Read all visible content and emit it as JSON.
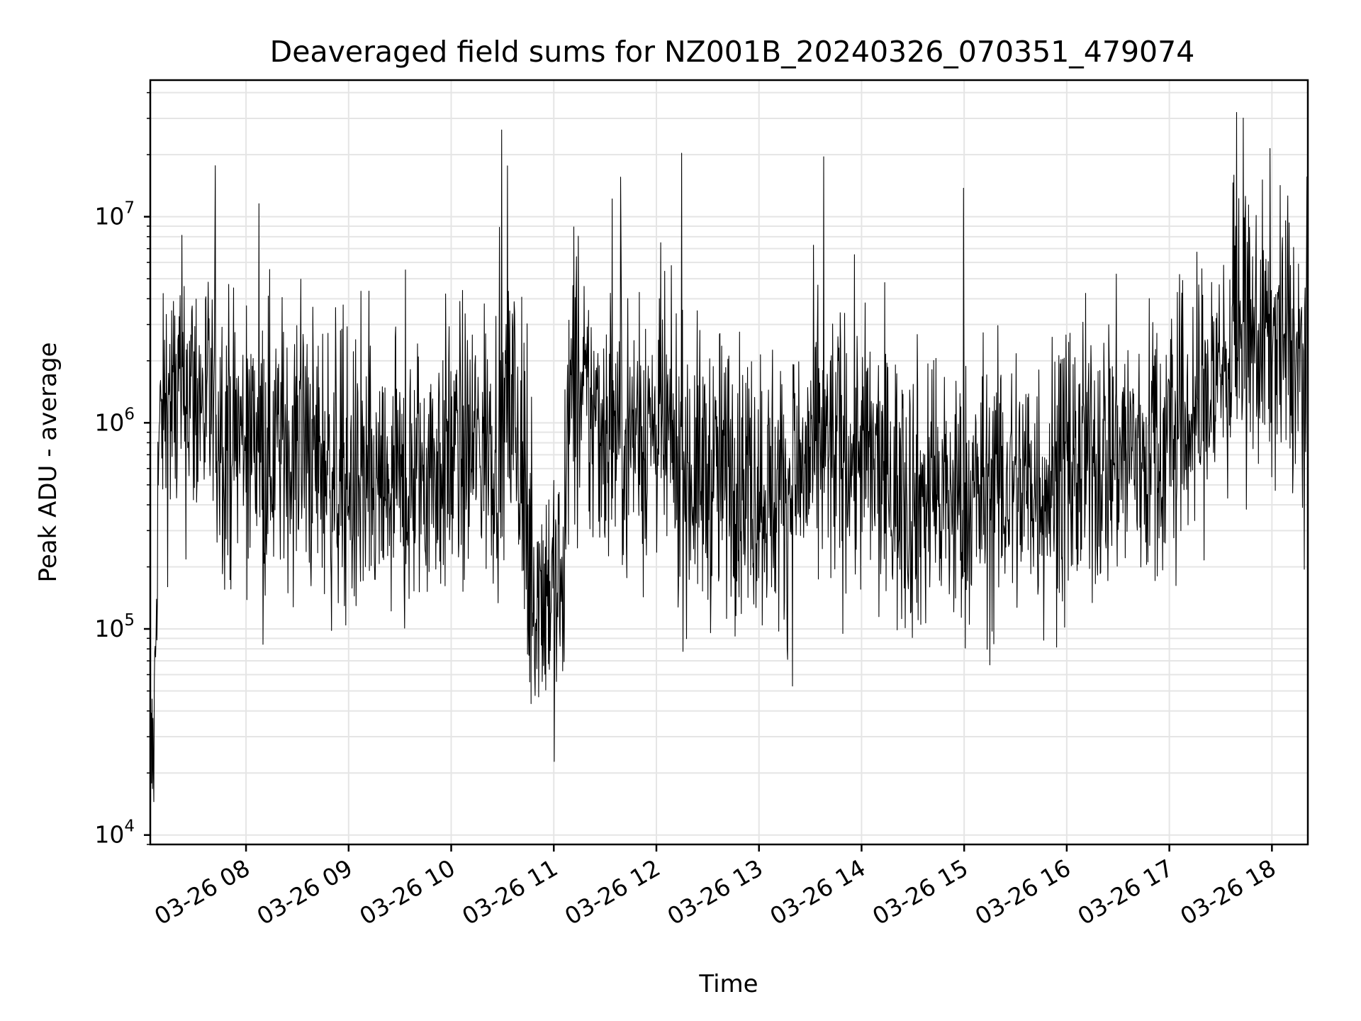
{
  "chart_data": {
    "type": "line",
    "title": "Deaveraged field sums for NZ001B_20240326_070351_479074",
    "xlabel": "Time",
    "ylabel": "Peak ADU - average",
    "x_start": "2024-03-26 07:04",
    "x_end": "2024-03-26 18:21",
    "xlim": [
      "2024-03-26 07:04",
      "2024-03-26 18:21"
    ],
    "yscale": "log",
    "ylim": [
      9000,
      46000000
    ],
    "grid": true,
    "line_color": "#000000",
    "x_ticks": [
      "2024-03-26 08:00",
      "2024-03-26 09:00",
      "2024-03-26 10:00",
      "2024-03-26 11:00",
      "2024-03-26 12:00",
      "2024-03-26 13:00",
      "2024-03-26 14:00",
      "2024-03-26 15:00",
      "2024-03-26 16:00",
      "2024-03-26 17:00",
      "2024-03-26 18:00"
    ],
    "x_tick_labels": [
      "03-26 08",
      "03-26 09",
      "03-26 10",
      "03-26 11",
      "03-26 12",
      "03-26 13",
      "03-26 14",
      "03-26 15",
      "03-26 16",
      "03-26 17",
      "03-26 18"
    ],
    "y_ticks": [
      10000,
      100000,
      1000000,
      10000000
    ],
    "y_tick_labels": [
      {
        "base": "10",
        "exp": "4"
      },
      {
        "base": "10",
        "exp": "5"
      },
      {
        "base": "10",
        "exp": "6"
      },
      {
        "base": "10",
        "exp": "7"
      }
    ],
    "series": [
      {
        "x": [
          "2024-03-26 07:04",
          "2024-03-26 07:06",
          "2024-03-26 07:09",
          "2024-03-26 07:12",
          "2024-03-26 07:15",
          "2024-03-26 07:18",
          "2024-03-26 07:21",
          "2024-03-26 07:24",
          "2024-03-26 07:26",
          "2024-03-26 07:29",
          "2024-03-26 07:35",
          "2024-03-26 07:40",
          "2024-03-26 07:45",
          "2024-03-26 07:50",
          "2024-03-26 08:00",
          "2024-03-26 08:15",
          "2024-03-26 08:30",
          "2024-03-26 08:45",
          "2024-03-26 09:00",
          "2024-03-26 09:05",
          "2024-03-26 09:15",
          "2024-03-26 09:30",
          "2024-03-26 09:45",
          "2024-03-26 10:00",
          "2024-03-26 10:15",
          "2024-03-26 10:30",
          "2024-03-26 10:37",
          "2024-03-26 10:45",
          "2024-03-26 11:00",
          "2024-03-26 11:07",
          "2024-03-26 11:08",
          "2024-03-26 11:15",
          "2024-03-26 11:30",
          "2024-03-26 11:45",
          "2024-03-26 12:00",
          "2024-03-26 12:15",
          "2024-03-26 12:30",
          "2024-03-26 12:45",
          "2024-03-26 13:00",
          "2024-03-26 13:15",
          "2024-03-26 13:30",
          "2024-03-26 13:45",
          "2024-03-26 14:00",
          "2024-03-26 14:15",
          "2024-03-26 14:30",
          "2024-03-26 14:45",
          "2024-03-26 15:00",
          "2024-03-26 15:15",
          "2024-03-26 15:30",
          "2024-03-26 15:45",
          "2024-03-26 16:00",
          "2024-03-26 16:15",
          "2024-03-26 16:30",
          "2024-03-26 16:45",
          "2024-03-26 17:00",
          "2024-03-26 17:15",
          "2024-03-26 17:30",
          "2024-03-26 17:45",
          "2024-03-26 18:00",
          "2024-03-26 18:10",
          "2024-03-26 18:21"
        ],
        "y": [
          20000,
          25000,
          800000,
          1200000,
          1300000,
          1100000,
          1400000,
          1300000,
          1500000,
          1350000,
          1250000,
          1100000,
          1000000,
          900000,
          850000,
          800000,
          750000,
          650000,
          500000,
          480000,
          420000,
          450000,
          600000,
          700000,
          750000,
          900000,
          1200000,
          170000,
          160000,
          150000,
          1300000,
          1200000,
          1000000,
          900000,
          950000,
          600000,
          550000,
          600000,
          500000,
          450000,
          650000,
          750000,
          700000,
          500000,
          450000,
          420000,
          400000,
          480000,
          500000,
          520000,
          550000,
          650000,
          750000,
          700000,
          800000,
          1100000,
          1800000,
          2400000,
          2700000,
          2300000,
          1600000
        ]
      }
    ]
  }
}
